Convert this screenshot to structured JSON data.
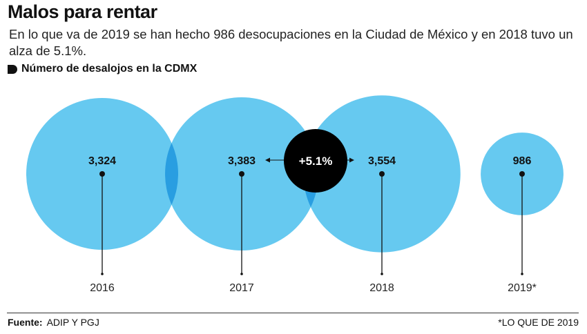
{
  "header": {
    "title": "Malos para rentar",
    "subtitle": "En lo que va de 2019 se han hecho 986 desocupaciones en la Ciudad de México y en 2018 tuvo un alza de 5.1%.",
    "legend_label": "Número de desalojos en la CDMX"
  },
  "chart_data": {
    "type": "bubble",
    "categories": [
      "2016",
      "2017",
      "2018",
      "2019*"
    ],
    "values": [
      3324,
      3383,
      3554,
      986
    ],
    "value_labels": [
      "3,324",
      "3,383",
      "3,554",
      "986"
    ],
    "annotation": {
      "text": "+5.1%",
      "from": "2017",
      "to": "2018"
    },
    "colors": {
      "bubble": "#66c9f0",
      "overlap": "#2cb3e8",
      "annotation": "#000000"
    }
  },
  "footer": {
    "source_label": "Fuente:",
    "source": "ADIP Y PGJ",
    "note": "*LO QUE DE 2019"
  }
}
